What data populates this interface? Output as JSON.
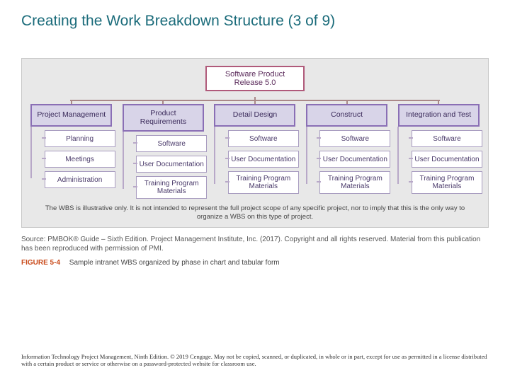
{
  "title": "Creating the Work Breakdown Structure (3 of 9)",
  "colors": {
    "titleColor": "#1a6b7a",
    "diagramBg": "#e8e8e8",
    "rootBoxBg": "#ffffff",
    "rootBoxBorder": "#b05a7a",
    "rootBoxText": "#5a2a5a",
    "branchBoxBg": "#d8d4e8",
    "branchBoxBorder": "#8a6fb5",
    "branchBoxText": "#3a2a5a",
    "leafBoxBg": "#ffffff",
    "leafBoxBorder": "#a89cc0",
    "leafBoxText": "#4a3a6a",
    "connectorColor": "#b8a8c8",
    "figNumColor": "#c94a1a",
    "sourceText": "#555555",
    "noteText": "#444444"
  },
  "wbs": {
    "type": "tree",
    "root": "Software Product Release 5.0",
    "branches": [
      {
        "label": "Project Management",
        "leaves": [
          "Planning",
          "Meetings",
          "Administration"
        ]
      },
      {
        "label": "Product Requirements",
        "leaves": [
          "Software",
          "User Documentation",
          "Training Program Materials"
        ]
      },
      {
        "label": "Detail Design",
        "leaves": [
          "Software",
          "User Documentation",
          "Training Program Materials"
        ]
      },
      {
        "label": "Construct",
        "leaves": [
          "Software",
          "User Documentation",
          "Training Program Materials"
        ]
      },
      {
        "label": "Integration and Test",
        "leaves": [
          "Software",
          "User Documentation",
          "Training Program Materials"
        ]
      }
    ],
    "note": "The WBS is illustrative only. It is not intended to represent the full project scope of any specific project, nor to imply that this is the only way to organize a WBS on this type of project."
  },
  "source": "Source: PMBOK® Guide – Sixth Edition. Project Management Institute, Inc. (2017). Copyright and all rights reserved. Material from this publication has been reproduced with permission of PMI.",
  "figure": {
    "number": "FIGURE 5-4",
    "caption": "Sample intranet WBS organized by phase in chart and tabular form"
  },
  "footer": "Information Technology Project Management, Ninth Edition. © 2019 Cengage. May not be copied, scanned, or duplicated, in whole or in part, except for use as permitted in a license distributed with a certain product or service or otherwise on a password-protected website for classroom use."
}
